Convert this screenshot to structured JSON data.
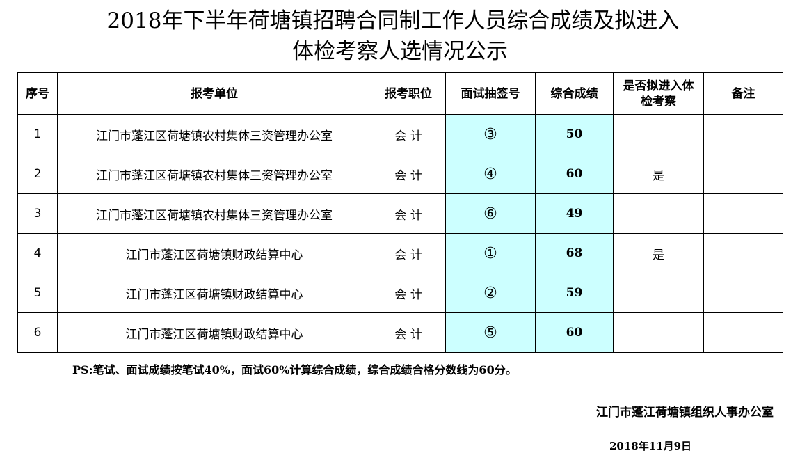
{
  "title": {
    "line1": "2018年下半年荷塘镇招聘合同制工作人员综合成绩及拟进入",
    "line2": "体检考察人选情况公示"
  },
  "table": {
    "headers": [
      "序号",
      "报考单位",
      "报考职位",
      "面试抽签号",
      "综合成绩",
      "是否拟进入体检考察",
      "备注"
    ],
    "rows": [
      {
        "no": "1",
        "unit": "江门市蓬江区荷塘镇农村集体三资管理办公室",
        "position": "会 计",
        "draw": "③",
        "score": "50",
        "selected": "",
        "remark": ""
      },
      {
        "no": "2",
        "unit": "江门市蓬江区荷塘镇农村集体三资管理办公室",
        "position": "会 计",
        "draw": "④",
        "score": "60",
        "selected": "是",
        "remark": ""
      },
      {
        "no": "3",
        "unit": "江门市蓬江区荷塘镇农村集体三资管理办公室",
        "position": "会 计",
        "draw": "⑥",
        "score": "49",
        "selected": "",
        "remark": ""
      },
      {
        "no": "4",
        "unit": "江门市蓬江区荷塘镇财政结算中心",
        "position": "会 计",
        "draw": "①",
        "score": "68",
        "selected": "是",
        "remark": ""
      },
      {
        "no": "5",
        "unit": "江门市蓬江区荷塘镇财政结算中心",
        "position": "会 计",
        "draw": "②",
        "score": "59",
        "selected": "",
        "remark": ""
      },
      {
        "no": "6",
        "unit": "江门市蓬江区荷塘镇财政结算中心",
        "position": "会 计",
        "draw": "⑤",
        "score": "60",
        "selected": "",
        "remark": ""
      }
    ],
    "highlight_color": "#ccffff"
  },
  "note": "PS:笔试、面试成绩按笔试40%，面试60%计算综合成绩，综合成绩合格分数线为60分。",
  "organization": "江门市蓬江荷塘镇组织人事办公室",
  "date": "2018年11月9日"
}
